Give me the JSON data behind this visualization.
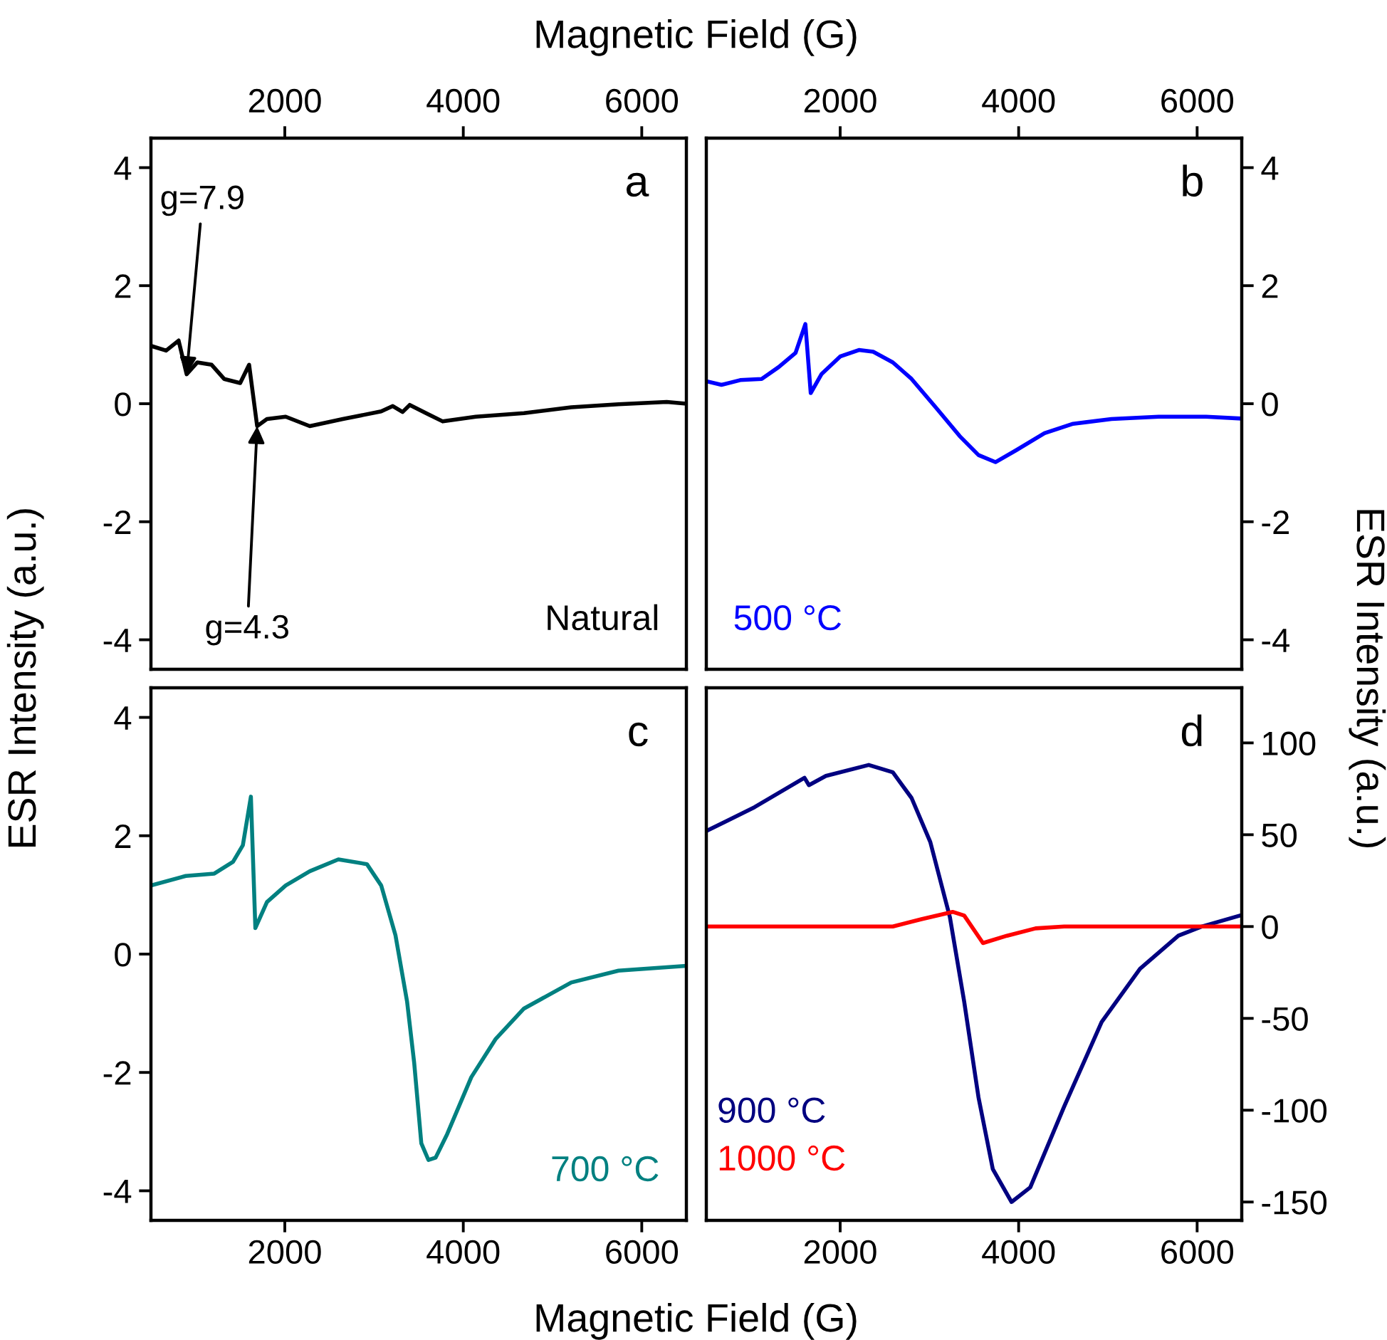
{
  "chart_data": [
    {
      "type": "line",
      "xlabel": "Magnetic Field (G)",
      "ylabel": "ESR Intensity (a.u.)",
      "xlim": [
        500,
        6500
      ],
      "xticks": [
        2000,
        4000,
        6000
      ],
      "ylim": [
        -4.5,
        4.5
      ],
      "yticks": [
        -4,
        -2,
        0,
        2,
        4
      ],
      "legend": false,
      "grid": false,
      "annotations": [
        "a",
        {
          "text": "g=7.9",
          "x": 900,
          "y": 0.5
        },
        {
          "text": "g=4.3",
          "x": 1690,
          "y": -0.38
        }
      ],
      "series": [
        {
          "name": "Natural",
          "color": "#000000",
          "x": [
            500,
            670,
            810,
            900,
            1020,
            1180,
            1320,
            1500,
            1600,
            1690,
            1800,
            2010,
            2280,
            2650,
            3080,
            3210,
            3320,
            3400,
            3610,
            3770,
            4140,
            4680,
            5210,
            5740,
            6280,
            6500
          ],
          "values": [
            0.98,
            0.9,
            1.07,
            0.5,
            0.7,
            0.66,
            0.42,
            0.35,
            0.66,
            -0.38,
            -0.26,
            -0.22,
            -0.38,
            -0.26,
            -0.13,
            -0.04,
            -0.14,
            -0.02,
            -0.18,
            -0.3,
            -0.22,
            -0.16,
            -0.06,
            -0.01,
            0.03,
            0.0
          ]
        }
      ]
    },
    {
      "type": "line",
      "ylabel": "ESR Intensity (a.u.)",
      "xlim": [
        500,
        6500
      ],
      "xticks": [
        2000,
        4000,
        6000
      ],
      "ylim": [
        -4.5,
        4.5
      ],
      "yticks": [
        -4,
        -2,
        0,
        2,
        4
      ],
      "legend": false,
      "grid": false,
      "annotations": [
        "b"
      ],
      "series": [
        {
          "name": "500 °C",
          "color": "#0000ff",
          "x": [
            500,
            670,
            880,
            1120,
            1310,
            1500,
            1610,
            1670,
            1790,
            2000,
            2210,
            2370,
            2590,
            2800,
            3070,
            3340,
            3550,
            3740,
            3970,
            4290,
            4610,
            5040,
            5570,
            6100,
            6480
          ],
          "values": [
            0.38,
            0.32,
            0.4,
            0.42,
            0.62,
            0.86,
            1.35,
            0.18,
            0.5,
            0.8,
            0.91,
            0.88,
            0.7,
            0.42,
            -0.06,
            -0.55,
            -0.87,
            -0.99,
            -0.79,
            -0.5,
            -0.34,
            -0.26,
            -0.22,
            -0.22,
            -0.25
          ]
        }
      ]
    },
    {
      "type": "line",
      "xlabel": "Magnetic Field (G)",
      "xlim": [
        500,
        6500
      ],
      "xticks": [
        2000,
        4000,
        6000
      ],
      "ylim": [
        -4.5,
        4.5
      ],
      "yticks": [
        -4,
        -2,
        0,
        2,
        4
      ],
      "legend": false,
      "grid": false,
      "annotations": [
        "c"
      ],
      "series": [
        {
          "name": "700 °C",
          "color": "#008080",
          "x": [
            500,
            890,
            1210,
            1420,
            1530,
            1620,
            1670,
            1800,
            2010,
            2280,
            2600,
            2920,
            3080,
            3240,
            3370,
            3450,
            3530,
            3610,
            3690,
            3820,
            4090,
            4360,
            4680,
            5210,
            5740,
            6490
          ],
          "values": [
            1.16,
            1.32,
            1.36,
            1.56,
            1.84,
            2.66,
            0.44,
            0.88,
            1.16,
            1.4,
            1.6,
            1.52,
            1.16,
            0.32,
            -0.8,
            -1.84,
            -3.2,
            -3.48,
            -3.44,
            -3.04,
            -2.08,
            -1.44,
            -0.92,
            -0.48,
            -0.28,
            -0.2
          ]
        }
      ]
    },
    {
      "type": "line",
      "xlim": [
        500,
        6500
      ],
      "xticks": [
        2000,
        4000,
        6000
      ],
      "ylim": [
        -160,
        130
      ],
      "yticks": [
        -150,
        -100,
        -50,
        0,
        50,
        100
      ],
      "legend": false,
      "grid": false,
      "annotations": [
        "d"
      ],
      "series": [
        {
          "name": "900 °C",
          "color": "#000080",
          "x": [
            500,
            1040,
            1600,
            1650,
            1840,
            2320,
            2590,
            2800,
            3010,
            3230,
            3390,
            3550,
            3710,
            3920,
            4130,
            4510,
            4930,
            5360,
            5790,
            6050,
            6480
          ],
          "values": [
            52,
            65,
            81,
            77,
            82,
            88,
            84,
            70,
            46,
            5,
            -41,
            -93,
            -132,
            -150,
            -142,
            -98,
            -52,
            -23,
            -5,
            0,
            6
          ]
        },
        {
          "name": "1000 °C",
          "color": "#ff0000",
          "x": [
            500,
            1840,
            2590,
            2910,
            3260,
            3390,
            3600,
            3870,
            4190,
            4510,
            6480
          ],
          "values": [
            0,
            0,
            0,
            4,
            8,
            6,
            -9,
            -5,
            -1,
            0,
            0
          ]
        }
      ]
    }
  ]
}
